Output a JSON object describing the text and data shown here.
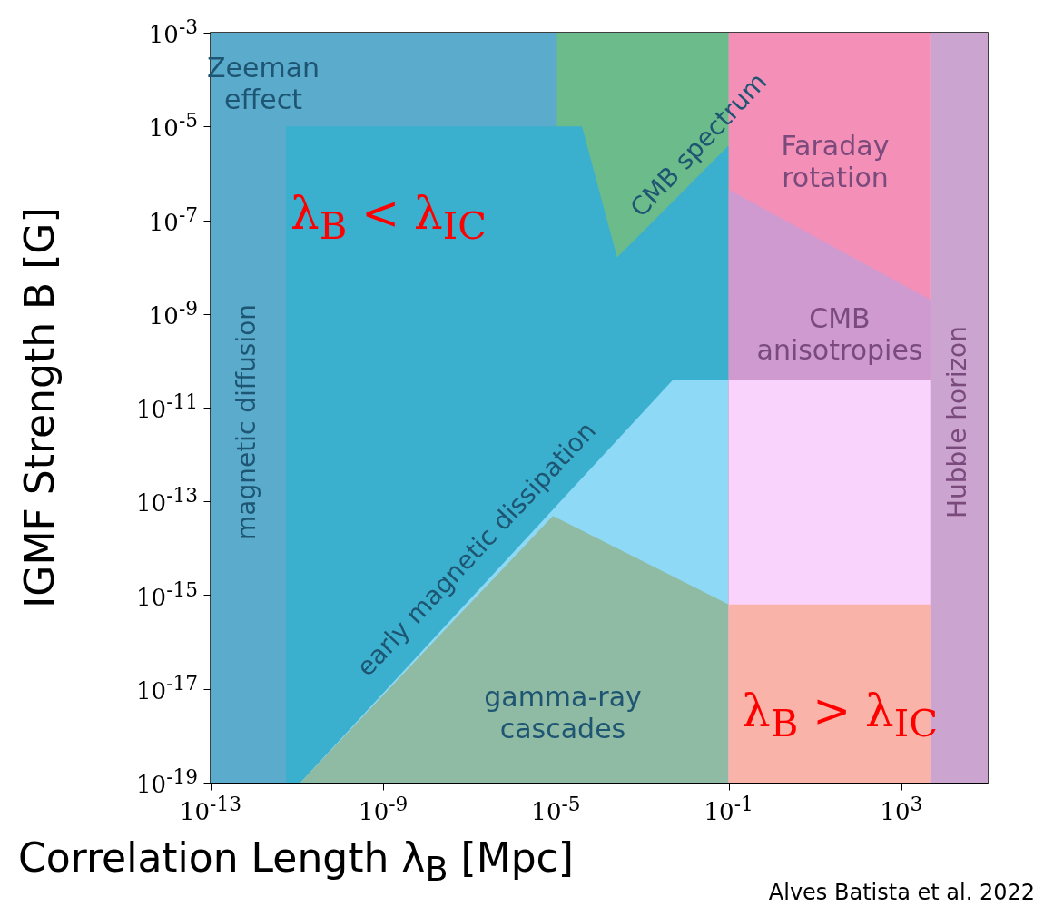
{
  "chart_data": {
    "type": "area",
    "xlabel": "Correlation Length λ$_{B}$ [Mpc]",
    "ylabel": "IGMF Strength B [G]",
    "log": "xy",
    "grid": false,
    "xlim": [
      1e-13,
      100000.0
    ],
    "ylim": [
      1e-19,
      0.001
    ],
    "xticks": [
      {
        "value": 1e-13,
        "label": "10$^{-13}$"
      },
      {
        "value": 1e-09,
        "label": "10$^{-9}$"
      },
      {
        "value": 1e-05,
        "label": "10$^{-5}$"
      },
      {
        "value": 0.1,
        "label": "10$^{-1}$"
      },
      {
        "value": 1000,
        "label": "10$^{3}$"
      }
    ],
    "yticks": [
      {
        "value": 0.001,
        "label": "10$^{-3}$"
      },
      {
        "value": 1e-05,
        "label": "10$^{-5}$"
      },
      {
        "value": 1e-07,
        "label": "10$^{-7}$"
      },
      {
        "value": 1e-09,
        "label": "10$^{-9}$"
      },
      {
        "value": 1e-11,
        "label": "10$^{-11}$"
      },
      {
        "value": 1e-13,
        "label": "10$^{-13}$"
      },
      {
        "value": 1e-15,
        "label": "10$^{-15}$"
      },
      {
        "value": 1e-17,
        "label": "10$^{-17}$"
      },
      {
        "value": 1e-19,
        "label": "10$^{-19}$"
      }
    ],
    "series": [
      {
        "color": "#5aabcc",
        "x": [
          1e-13,
          0.1
        ],
        "values": [
          0.001,
          0.001
        ]
      },
      {
        "color": "#6cbb8a",
        "x": [
          1.05e-05,
          0.1
        ],
        "values": [
          0.001,
          0.001
        ]
      },
      {
        "color": "#3ab0ce",
        "x": [
          5.6e-12,
          4e-05,
          0.00026,
          0.1
        ],
        "values": [
          1e-05,
          1e-05,
          1.6e-08,
          3.9e-06
        ]
      },
      {
        "color": "#8edaf6",
        "x": [
          1.2e-11,
          0.0052,
          0.1
        ],
        "values": [
          1e-19,
          4e-11,
          4e-11
        ]
      },
      {
        "color": "#8fbaa3",
        "x": [
          1.2e-11,
          8.5e-06,
          0.1
        ],
        "values": [
          1e-19,
          4.9e-14,
          6.3e-16
        ]
      },
      {
        "color": "#f48fb8",
        "x": [
          0.1,
          4700
        ],
        "values": [
          0.001,
          0.001
        ]
      },
      {
        "color": "#cf9ad0",
        "x": [
          0.1,
          4700
        ],
        "values": [
          4.5e-07,
          2e-09
        ]
      },
      {
        "color": "#f9d3fb",
        "x": [
          0.1,
          4700
        ],
        "values": [
          4e-11,
          4e-11
        ]
      },
      {
        "color": "#f9b3a8",
        "x": [
          0.1,
          4700
        ],
        "values": [
          6.3e-16,
          6.3e-16
        ]
      },
      {
        "color": "#cba4cf",
        "x": [
          4700,
          100000.0
        ],
        "values": [
          0.001,
          0.001
        ]
      }
    ],
    "annotations": [
      "Zeeman effect",
      "magnetic diffusion",
      "CMB spectrum",
      "Faraday rotation",
      "CMB anisotropies",
      "Hubble horizon",
      "early magnetic dissipation",
      "gamma-ray cascades",
      "λ$_{B}$ < λ$_{IC}$",
      "λ$_{B}$ > λ$_{IC}$",
      "Alves Batista et al. 2022"
    ]
  }
}
